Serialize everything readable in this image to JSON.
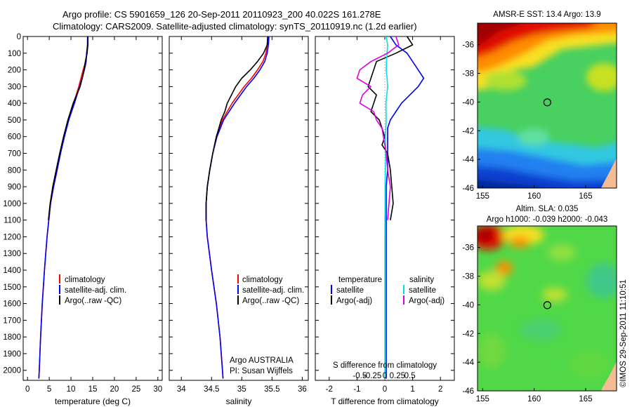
{
  "title_line1": "Argo profile: CS 5901659_126 20-Sep-2011 20110923_200 40.022S 161.278E",
  "title_line2": "Climatology: CARS2009. Satellite-adjusted climatology: synTS_20110919.nc (1.2d earlier)",
  "depth_ticks": [
    0,
    100,
    200,
    300,
    400,
    500,
    600,
    700,
    800,
    900,
    1000,
    1100,
    1200,
    1300,
    1400,
    1500,
    1600,
    1700,
    1800,
    1900,
    2000
  ],
  "chart_data": [
    {
      "type": "line",
      "xlabel": "temperature (deg C)",
      "xlim": [
        -1,
        31
      ],
      "ylim": [
        0,
        2060
      ],
      "y_reversed": true,
      "x_ticks": [
        0,
        5,
        10,
        15,
        20,
        25,
        30
      ],
      "legend_position": "lower-center",
      "legend": [
        "climatology",
        "satellite-adj. clim.",
        "Argo(..raw -QC)"
      ],
      "series": [
        {
          "name": "climatology",
          "color": "#ff0000",
          "depth": [
            0,
            50,
            100,
            150,
            200,
            250,
            300,
            400,
            500,
            600,
            700,
            800,
            900,
            1000,
            1200,
            1400,
            1600,
            1800,
            2000,
            2050
          ],
          "values": [
            13.9,
            13.8,
            13.7,
            13.4,
            12.8,
            12.3,
            11.8,
            10.6,
            9.4,
            8.4,
            7.6,
            6.8,
            6.0,
            5.3,
            4.5,
            3.9,
            3.4,
            3.0,
            2.7,
            2.6
          ]
        },
        {
          "name": "satellite-adj. clim.",
          "color": "#0000ff",
          "depth": [
            0,
            50,
            100,
            150,
            200,
            250,
            300,
            400,
            500,
            600,
            700,
            800,
            900,
            1000,
            1200,
            1400,
            1600,
            1800,
            2000,
            2050
          ],
          "values": [
            13.8,
            13.8,
            13.6,
            13.5,
            13.1,
            12.6,
            12.0,
            10.8,
            9.5,
            8.5,
            7.6,
            6.8,
            6.0,
            5.3,
            4.5,
            3.9,
            3.4,
            3.0,
            2.7,
            2.6
          ]
        },
        {
          "name": "Argo(..raw -QC)",
          "color": "#000000",
          "depth": [
            0,
            50,
            100,
            150,
            200,
            250,
            300,
            400,
            500,
            600,
            700,
            800,
            900,
            1000,
            1100
          ],
          "values": [
            13.9,
            13.9,
            13.7,
            13.3,
            13.0,
            12.6,
            12.1,
            10.5,
            9.3,
            8.3,
            7.4,
            6.6,
            5.8,
            5.2,
            4.8
          ]
        }
      ]
    },
    {
      "type": "line",
      "xlabel": "salinity",
      "xlim": [
        33.8,
        36.1
      ],
      "ylim": [
        0,
        2060
      ],
      "y_reversed": true,
      "x_ticks": [
        34,
        34.5,
        35,
        35.5,
        36
      ],
      "legend_position": "lower-center",
      "legend": [
        "climatology",
        "satellite-adj. clim.",
        "Argo(..raw -QC)"
      ],
      "annotation_line1": "Argo AUSTRALIA",
      "annotation_line2": "PI: Susan Wijffels",
      "series": [
        {
          "name": "climatology",
          "color": "#ff0000",
          "depth": [
            0,
            50,
            100,
            150,
            200,
            250,
            300,
            400,
            500,
            600,
            700,
            800,
            900,
            1000,
            1100,
            1200,
            1400,
            1600,
            1800,
            2000,
            2050
          ],
          "values": [
            35.43,
            35.42,
            35.4,
            35.35,
            35.26,
            35.16,
            35.04,
            34.84,
            34.68,
            34.58,
            34.52,
            34.47,
            34.43,
            34.41,
            34.41,
            34.43,
            34.5,
            34.58,
            34.64,
            34.68,
            34.69
          ]
        },
        {
          "name": "satellite-adj. clim.",
          "color": "#0000ff",
          "depth": [
            0,
            50,
            100,
            150,
            200,
            250,
            300,
            400,
            500,
            600,
            700,
            800,
            900,
            1000,
            1100,
            1200,
            1400,
            1600,
            1800,
            2000,
            2050
          ],
          "values": [
            35.45,
            35.44,
            35.42,
            35.38,
            35.3,
            35.2,
            35.08,
            34.88,
            34.7,
            34.59,
            34.52,
            34.47,
            34.43,
            34.41,
            34.41,
            34.43,
            34.5,
            34.58,
            34.64,
            34.68,
            34.69
          ]
        },
        {
          "name": "Argo(..raw -QC)",
          "color": "#000000",
          "depth": [
            0,
            50,
            100,
            150,
            200,
            250,
            300,
            400,
            450,
            500,
            550,
            600,
            700,
            800,
            900,
            1000,
            1100
          ],
          "values": [
            35.43,
            35.42,
            35.36,
            35.26,
            35.14,
            35.0,
            34.9,
            34.76,
            34.72,
            34.66,
            34.62,
            34.58,
            34.52,
            34.47,
            34.43,
            34.41,
            34.41
          ]
        }
      ]
    },
    {
      "type": "line",
      "xlabel": "T difference from climatology",
      "xlabel_top": "S difference from climatology",
      "xlim": [
        -2.5,
        2.5
      ],
      "ylim": [
        0,
        2060
      ],
      "y_reversed": true,
      "x_ticks": [
        -2,
        -1,
        0,
        1,
        2
      ],
      "x_ticks_top": [
        "-0.5",
        "-0.25",
        "0",
        "0.25",
        "0.5"
      ],
      "legend_position": "lower-center",
      "legend_temperature_title": "temperature",
      "legend_salinity_title": "salinity",
      "legend": [
        "satellite",
        "Argo(-adj)",
        "satellite",
        "Argo(-adj)"
      ],
      "series": [
        {
          "name": "satellite",
          "group": "temperature",
          "color": "#0000ff",
          "depth": [
            0,
            50,
            100,
            150,
            200,
            250,
            300,
            350,
            400,
            450,
            500,
            550,
            600,
            700,
            800,
            900,
            1000,
            1100,
            1200,
            1300,
            1400,
            1500,
            1600,
            1800,
            2000,
            2050
          ],
          "values": [
            0.2,
            0.4,
            0.8,
            1.0,
            1.2,
            1.4,
            1.2,
            0.9,
            0.6,
            0.4,
            0.2,
            0.1,
            0.1,
            0.1,
            0.1,
            0.05,
            0.05,
            0.05,
            0.05,
            0.05,
            0.05,
            0.05,
            0.05,
            0.05,
            0.05,
            0.05
          ]
        },
        {
          "name": "Argo(-adj)",
          "group": "temperature",
          "color": "#000000",
          "depth": [
            0,
            50,
            100,
            150,
            200,
            250,
            300,
            350,
            400,
            450,
            500,
            550,
            600,
            650,
            700,
            800,
            900,
            1000,
            1100
          ],
          "values": [
            0.8,
            1.0,
            0.4,
            -0.3,
            -0.4,
            -0.5,
            -0.6,
            -0.3,
            -0.4,
            -0.5,
            -0.2,
            -0.1,
            0.0,
            -0.1,
            0.1,
            0.2,
            0.25,
            0.3,
            0.2
          ]
        },
        {
          "name": "satellite",
          "group": "salinity",
          "color": "#00e0e0",
          "depth": [
            0,
            50,
            100,
            150,
            200,
            250,
            300,
            400,
            500,
            600,
            700,
            800,
            900,
            1000,
            1200,
            1400,
            1600,
            1800,
            2000,
            2050
          ],
          "values": [
            0.05,
            0.1,
            0.08,
            0.06,
            0.05,
            0.08,
            0.1,
            0.04,
            0.05,
            0.02,
            0.03,
            0.02,
            0.01,
            0.01,
            0.0,
            0.0,
            0.0,
            0.0,
            0.0,
            0.0
          ]
        },
        {
          "name": "Argo(-adj)",
          "group": "salinity",
          "color": "#dd00dd",
          "depth": [
            0,
            50,
            100,
            150,
            200,
            250,
            300,
            350,
            400,
            450,
            500,
            550,
            600,
            700,
            800,
            900,
            1000,
            1100
          ],
          "values": [
            0.4,
            0.5,
            0.1,
            -0.5,
            -0.9,
            -1.0,
            -0.5,
            -0.8,
            -0.9,
            -0.4,
            -0.3,
            -0.1,
            -0.05,
            0.05,
            0.1,
            0.2,
            0.15,
            0.1
          ]
        }
      ]
    },
    {
      "type": "heatmap",
      "title": "AMSR-E SST: 13.4 Argo: 13.9",
      "xlim": [
        154.5,
        168
      ],
      "ylim": [
        -46,
        -34.5
      ],
      "x_ticks": [
        155,
        160,
        165
      ],
      "y_ticks": [
        -36,
        -38,
        -40,
        -42,
        -44,
        -46
      ],
      "marker_lon": 161.278,
      "marker_lat": -40.022
    },
    {
      "type": "heatmap",
      "title_line1": "Altim. SLA: 0.035",
      "title_line2": "Argo h1000: -0.039 h2000: -0.043",
      "xlim": [
        154.5,
        168
      ],
      "ylim": [
        -46,
        -34.5
      ],
      "x_ticks": [
        155,
        160,
        165
      ],
      "y_ticks": [
        -36,
        -38,
        -40,
        -42,
        -44,
        -46
      ],
      "marker_lon": 161.278,
      "marker_lat": -40.022
    }
  ],
  "side_stamp": "©IMOS 29-Sep-2011 11:10:51"
}
